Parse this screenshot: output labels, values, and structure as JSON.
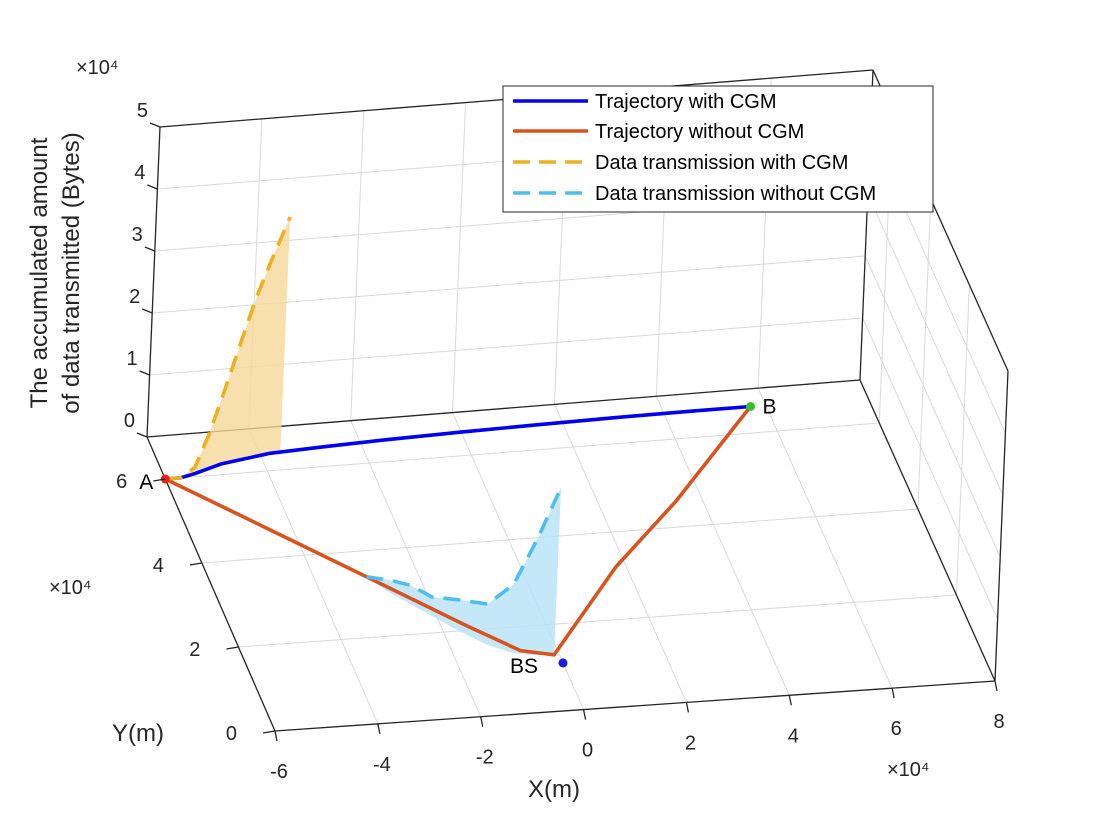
{
  "chart_data": {
    "type": "line",
    "projection": "3d",
    "zlabel": [
      "The accumulated amount",
      "of data transmitted (Bytes)"
    ],
    "xlabel": "X(m)",
    "ylabel": "Y(m)",
    "x_ticks": [
      "-6",
      "-4",
      "-2",
      "0",
      "2",
      "4",
      "6",
      "8"
    ],
    "y_ticks": [
      "0",
      "2",
      "4",
      "6"
    ],
    "z_ticks": [
      "0",
      "1",
      "2",
      "3",
      "4",
      "5"
    ],
    "x_multiplier": "×10⁴",
    "y_multiplier": "×10⁴",
    "z_multiplier": "×10⁴",
    "xlim": [
      -60000,
      80000
    ],
    "ylim": [
      0,
      70000
    ],
    "zlim": [
      0,
      50000
    ],
    "grid": true,
    "legend_position": "top-right",
    "points": [
      {
        "label": "A",
        "x": -60000,
        "y": 60000,
        "z": 0,
        "color": "#e8201c"
      },
      {
        "label": "B",
        "x": 57000,
        "y": 66000,
        "z": 0,
        "color": "#35c22f"
      },
      {
        "label": "BS",
        "x": 0,
        "y": 11000,
        "z": 0,
        "color": "#1c1ce0"
      }
    ],
    "series": [
      {
        "name": "Trajectory with CGM",
        "color": "#0000f0",
        "style": "solid",
        "x": [
          -60000,
          -57000,
          -54000,
          -48000,
          -38000,
          -28000,
          -15000,
          0,
          15000,
          30000,
          45000,
          57000
        ],
        "y": [
          60000,
          60000,
          60700,
          62500,
          64000,
          64500,
          65000,
          65400,
          65700,
          65900,
          66000,
          66000
        ],
        "z": [
          0,
          0,
          0,
          0,
          0,
          0,
          0,
          0,
          0,
          0,
          0,
          0
        ]
      },
      {
        "name": "Trajectory without CGM",
        "color": "#d9531e",
        "style": "solid",
        "x": [
          -60000,
          -45000,
          -30000,
          -15000,
          -7000,
          -1000,
          3000,
          18000,
          35000,
          57000
        ],
        "y": [
          60000,
          47000,
          34000,
          21000,
          14500,
          13000,
          17000,
          32000,
          46000,
          66000
        ],
        "z": [
          0,
          0,
          0,
          0,
          0,
          0,
          0,
          0,
          0,
          0
        ]
      },
      {
        "name": "Data transmission with CGM",
        "color": "#edb120",
        "fill": "#f6d89a",
        "style": "dashed",
        "x": [
          -60000,
          -57000,
          -54000,
          -51000,
          -48000,
          -45000,
          -42000,
          -39000,
          -36000
        ],
        "y": [
          60000,
          60000,
          60700,
          61500,
          62500,
          63100,
          63600,
          63900,
          64000
        ],
        "z": [
          0,
          0,
          1000,
          6000,
          12000,
          19000,
          26000,
          32000,
          38000
        ]
      },
      {
        "name": "Data transmission without CGM",
        "color": "#4dbeee",
        "fill": "#b7e2f6",
        "style": "dashed",
        "x": [
          -30000,
          -27000,
          -24000,
          -21000,
          -17000,
          -13000,
          -9000,
          -5000,
          -1000
        ],
        "y": [
          34000,
          30000,
          27000,
          24000,
          20000,
          16500,
          14200,
          13200,
          13000
        ],
        "z": [
          0,
          2000,
          3000,
          3000,
          5000,
          6500,
          11000,
          19000,
          27000
        ]
      }
    ]
  }
}
